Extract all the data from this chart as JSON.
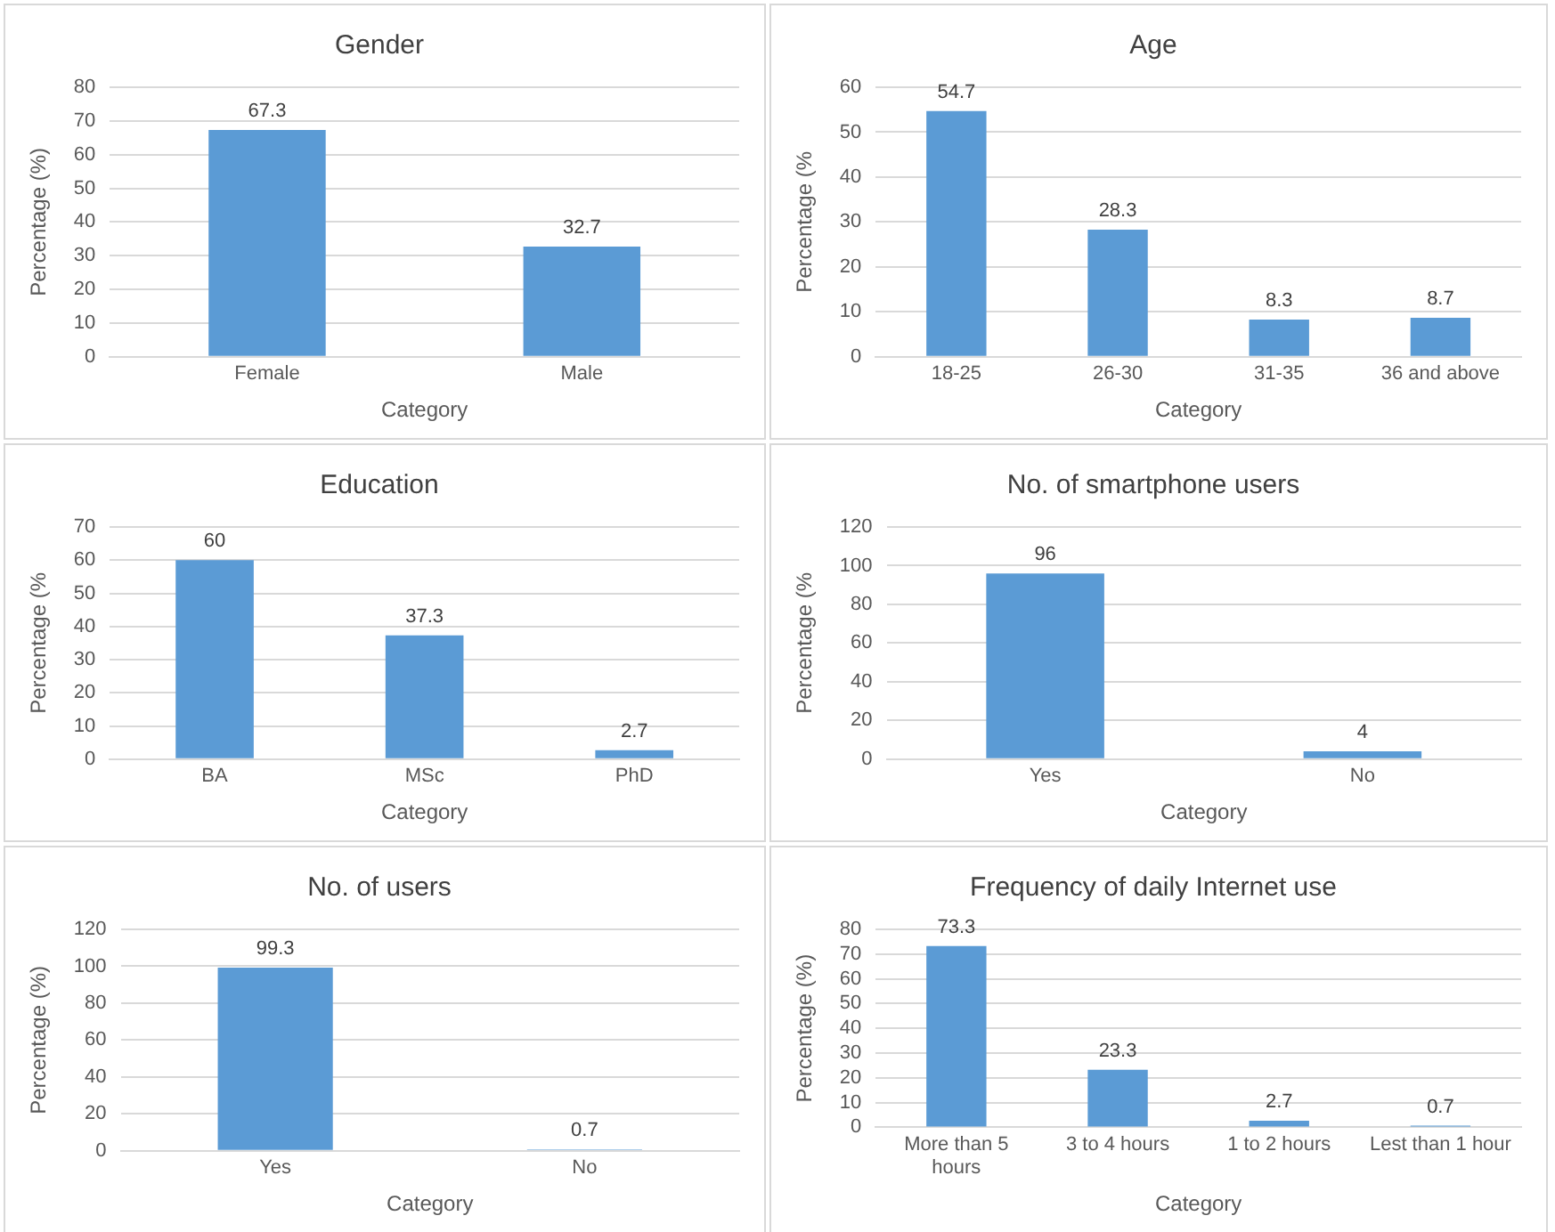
{
  "chart_data": [
    {
      "type": "bar",
      "title": "Gender",
      "xlabel": "Category",
      "ylabel": "Percentage (%)",
      "categories": [
        "Female",
        "Male"
      ],
      "values": [
        67.3,
        32.7
      ],
      "color": "#5b9bd5",
      "ylim": [
        0,
        80
      ],
      "yticks": [
        0,
        10,
        20,
        30,
        40,
        50,
        60,
        70,
        80
      ],
      "grid": "y",
      "data_labels": true
    },
    {
      "type": "bar",
      "title": "Age",
      "xlabel": "Category",
      "ylabel": "Percentage (%",
      "categories": [
        "18-25",
        "26-30",
        "31-35",
        "36 and above"
      ],
      "values": [
        54.7,
        28.3,
        8.3,
        8.7
      ],
      "color": "#5b9bd5",
      "ylim": [
        0,
        60
      ],
      "yticks": [
        0,
        10,
        20,
        30,
        40,
        50,
        60
      ],
      "grid": "y",
      "data_labels": true
    },
    {
      "type": "bar",
      "title": "Education",
      "xlabel": "Category",
      "ylabel": "Percentage (%",
      "categories": [
        "BA",
        "MSc",
        "PhD"
      ],
      "values": [
        60,
        37.3,
        2.7
      ],
      "color": "#5b9bd5",
      "ylim": [
        0,
        70
      ],
      "yticks": [
        0,
        10,
        20,
        30,
        40,
        50,
        60,
        70
      ],
      "grid": "y",
      "data_labels": true
    },
    {
      "type": "bar",
      "title": "No. of smartphone users",
      "xlabel": "Category",
      "ylabel": "Percentage (%",
      "categories": [
        "Yes",
        "No"
      ],
      "values": [
        96,
        4
      ],
      "color": "#5b9bd5",
      "ylim": [
        0,
        120
      ],
      "yticks": [
        0,
        20,
        40,
        60,
        80,
        100,
        120
      ],
      "grid": "y",
      "data_labels": true
    },
    {
      "type": "bar",
      "title": "No. of users",
      "xlabel": "Category",
      "ylabel": "Percentage (%)",
      "categories": [
        "Yes",
        "No"
      ],
      "values": [
        99.3,
        0.7
      ],
      "color": "#5b9bd5",
      "ylim": [
        0,
        120
      ],
      "yticks": [
        0,
        20,
        40,
        60,
        80,
        100,
        120
      ],
      "grid": "y",
      "data_labels": true
    },
    {
      "type": "bar",
      "title": "Frequency of daily Internet use",
      "xlabel": "Category",
      "ylabel": "Percentage (%)",
      "categories": [
        "More than 5 hours",
        "3 to 4 hours",
        "1 to 2 hours",
        "Lest than 1 hour"
      ],
      "values": [
        73.3,
        23.3,
        2.7,
        0.7
      ],
      "color": "#5b9bd5",
      "ylim": [
        0,
        80
      ],
      "yticks": [
        0,
        10,
        20,
        30,
        40,
        50,
        60,
        70,
        80
      ],
      "grid": "y",
      "data_labels": true
    }
  ]
}
